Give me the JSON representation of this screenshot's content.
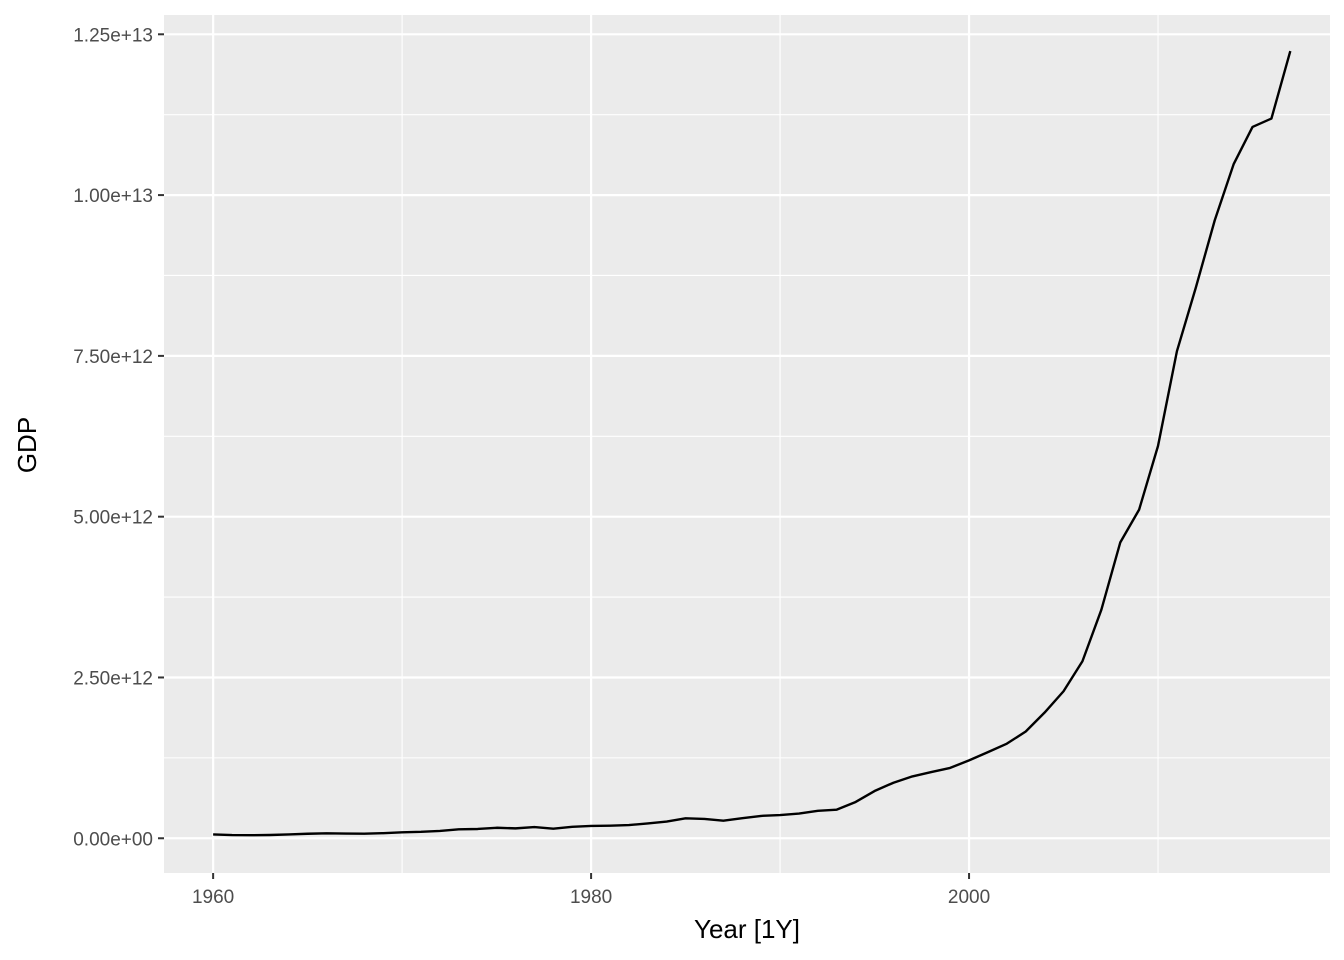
{
  "chart_data": {
    "type": "line",
    "xlabel": "Year [1Y]",
    "ylabel": "GDP",
    "xlim": [
      1957.4,
      2019.1
    ],
    "ylim": [
      -540000000000.0,
      12800000000000.0
    ],
    "x_ticks": [
      {
        "value": 1960,
        "label": "1960"
      },
      {
        "value": 1980,
        "label": "1980"
      },
      {
        "value": 2000,
        "label": "2000"
      }
    ],
    "x_minor_ticks": [
      1970,
      1990,
      2010
    ],
    "y_ticks": [
      {
        "value": 0,
        "label": "0.00e+00"
      },
      {
        "value": 2500000000000,
        "label": "2.50e+12"
      },
      {
        "value": 5000000000000,
        "label": "5.00e+12"
      },
      {
        "value": 7500000000000,
        "label": "7.50e+12"
      },
      {
        "value": 10000000000000,
        "label": "1.00e+13"
      },
      {
        "value": 12500000000000,
        "label": "1.25e+13"
      }
    ],
    "y_minor_ticks": [
      1250000000000,
      3750000000000,
      6250000000000,
      8750000000000,
      11250000000000
    ],
    "grid": true,
    "colors": {
      "panel": "#ebebeb",
      "grid": "#ffffff",
      "line": "#000000"
    },
    "series": [
      {
        "x": [
          1960,
          1961,
          1962,
          1963,
          1964,
          1965,
          1966,
          1967,
          1968,
          1969,
          1970,
          1971,
          1972,
          1973,
          1974,
          1975,
          1976,
          1977,
          1978,
          1979,
          1980,
          1981,
          1982,
          1983,
          1984,
          1985,
          1986,
          1987,
          1988,
          1989,
          1990,
          1991,
          1992,
          1993,
          1994,
          1995,
          1996,
          1997,
          1998,
          1999,
          2000,
          2001,
          2002,
          2003,
          2004,
          2005,
          2006,
          2007,
          2008,
          2009,
          2010,
          2011,
          2012,
          2013,
          2014,
          2015,
          2016,
          2017
        ],
        "values": [
          59700000000,
          50100000000,
          47200000000,
          50700000000,
          59700000000,
          70400000000,
          76700000000,
          72900000000,
          70800000000,
          79700000000,
          92600000000,
          99800000000,
          113700000000,
          138500000000,
          144200000000,
          163400000000,
          153900000000,
          174900000000,
          149500000000,
          178300000000,
          191100000000,
          195900000000,
          205100000000,
          230700000000,
          259900000000,
          309500000000,
          300800000000,
          272900000000,
          312400000000,
          348000000000,
          360900000000,
          383400000000,
          426900000000,
          444700000000,
          564300000000,
          734500000000,
          863700000000,
          961600000000,
          1029000000000,
          1094000000000,
          1211000000000,
          1339000000000,
          1471000000000,
          1660000000000,
          1955000000000,
          2286000000000,
          2752000000000,
          3552000000000,
          4598000000000,
          5110000000000,
          6101000000000,
          7573000000000,
          8561000000000,
          9607000000000,
          10480000000000,
          11060000000000,
          11190000000000,
          12240000000000
        ]
      }
    ]
  }
}
